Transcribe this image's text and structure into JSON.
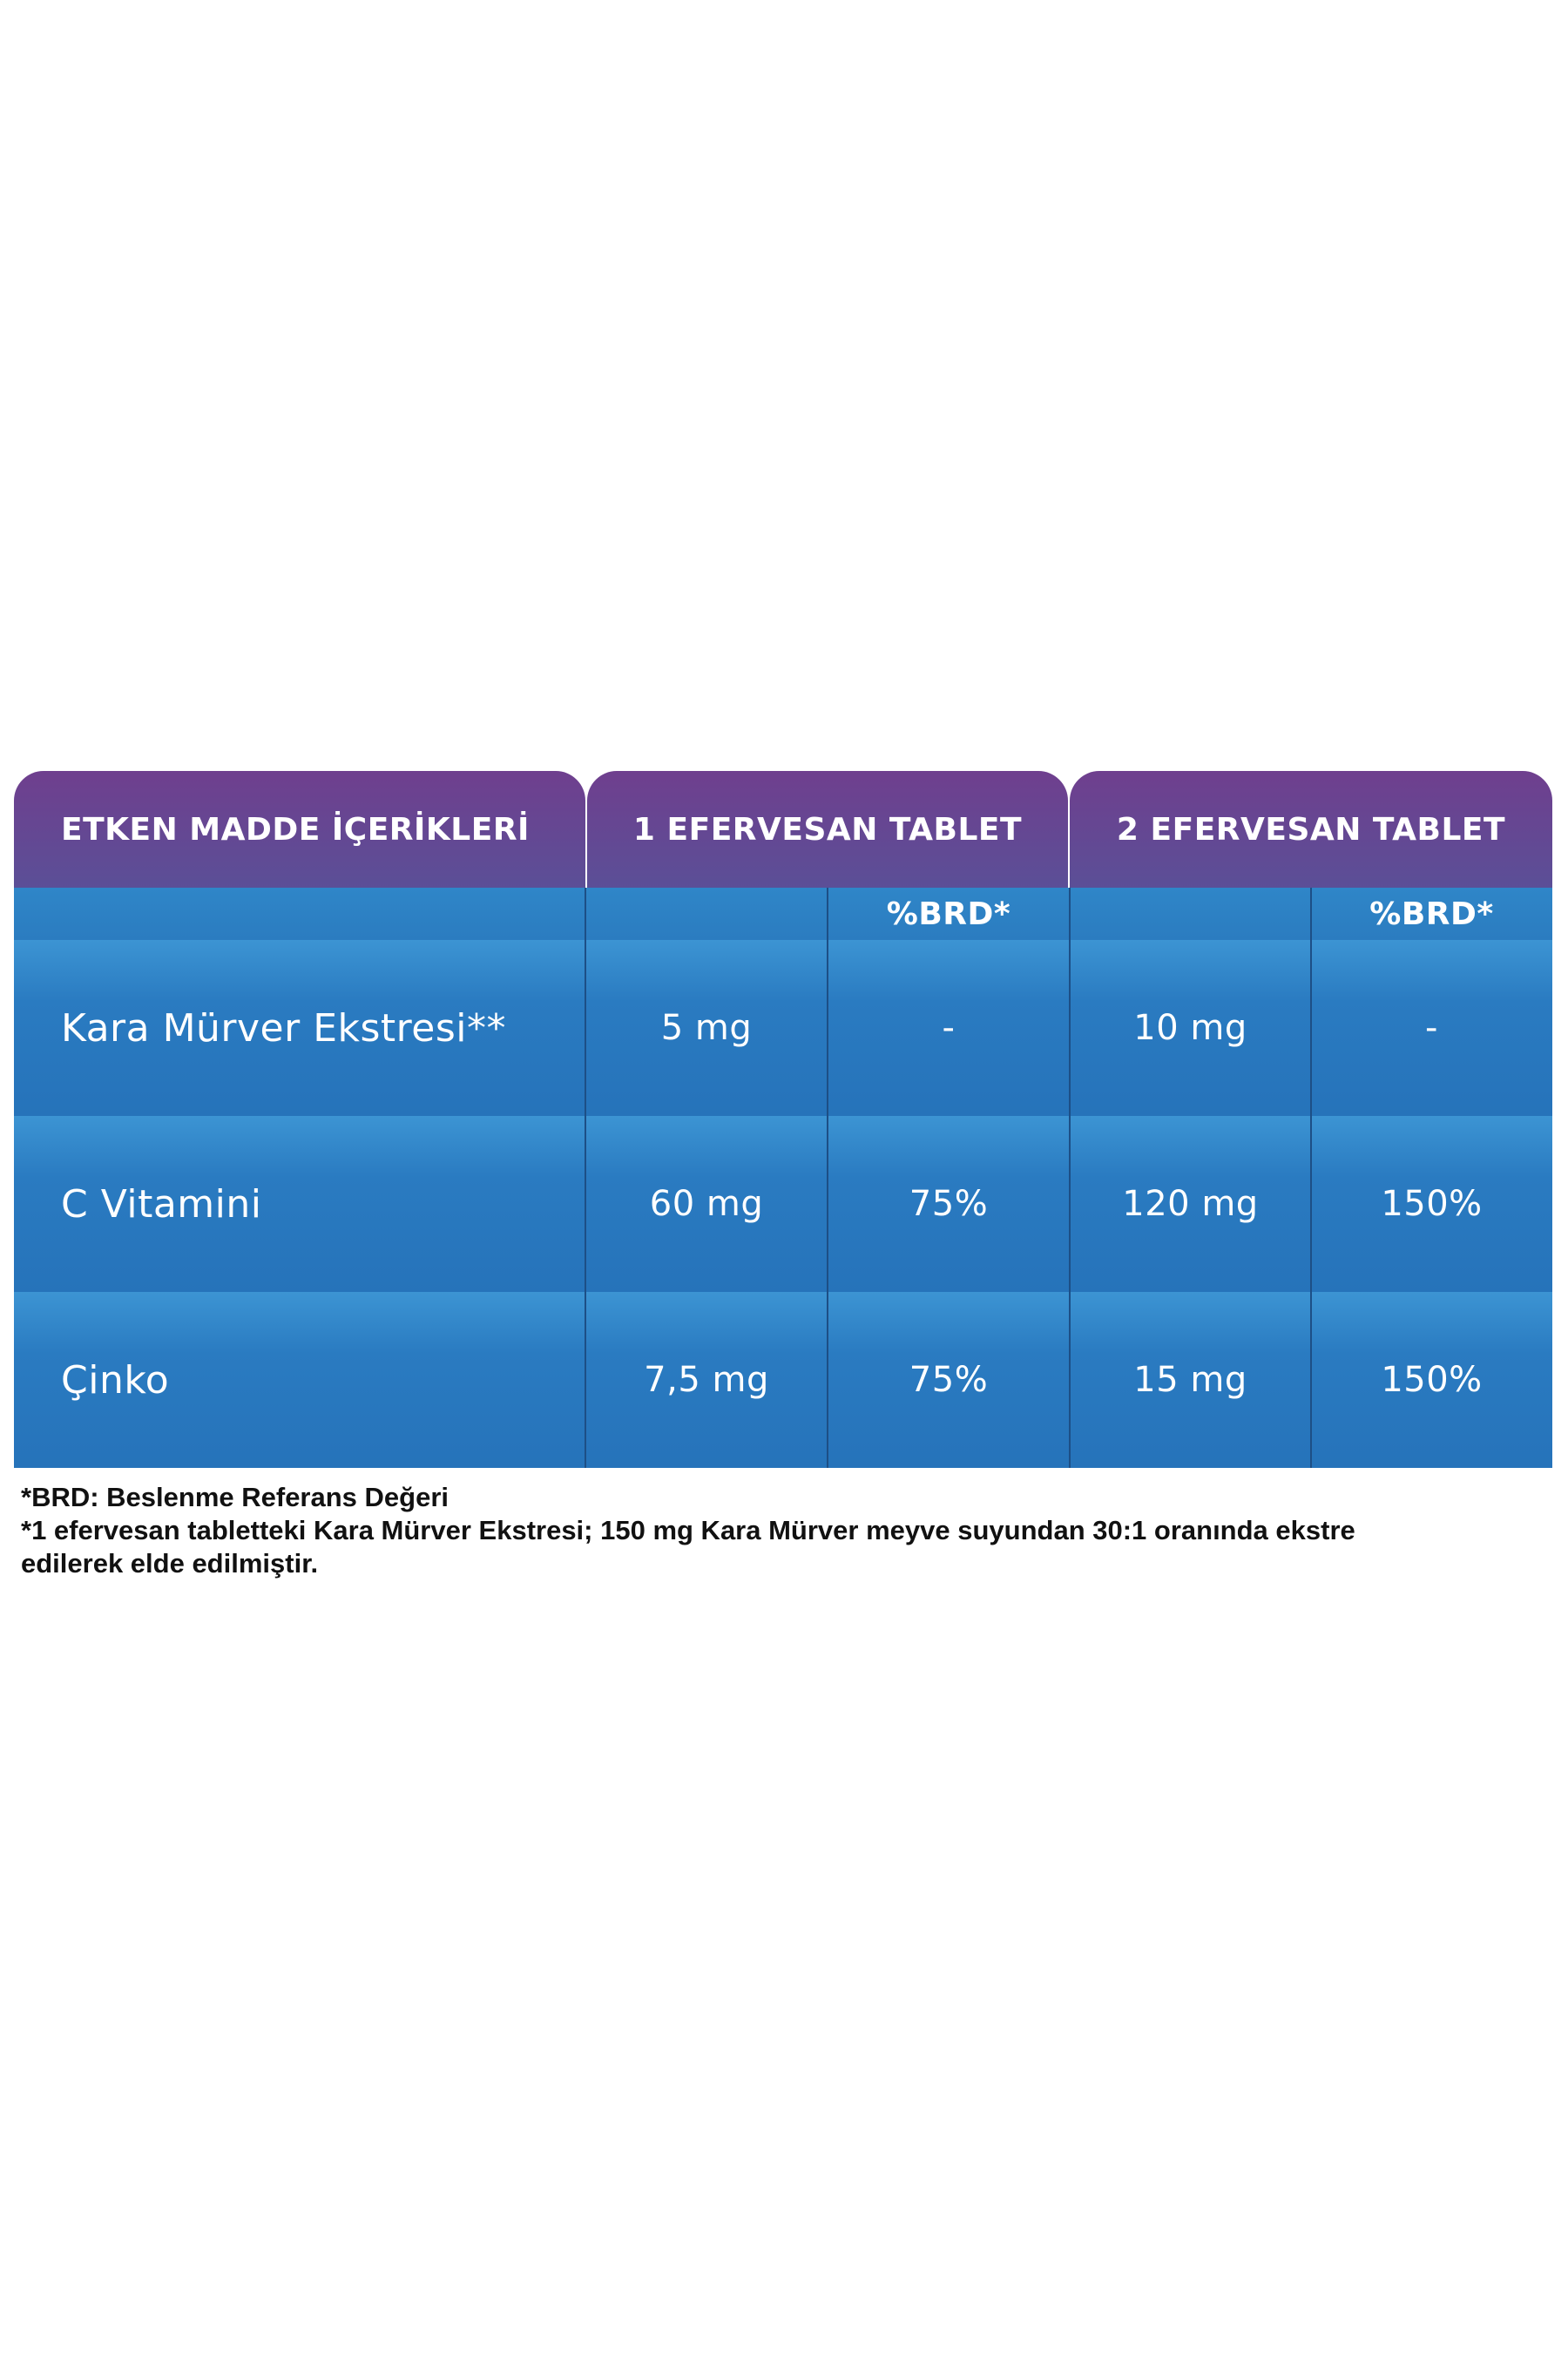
{
  "table": {
    "headers": {
      "ingredients": "ETKEN MADDE İÇERİKLERİ",
      "one_tablet": "1 EFERVESAN TABLET",
      "two_tablets": "2 EFERVESAN TABLET"
    },
    "subheaders": {
      "one_tablet_brd": "%BRD*",
      "two_tablets_brd": "%BRD*"
    },
    "rows": [
      {
        "name": "Kara Mürver Ekstresi**",
        "one_amount": "5 mg",
        "one_brd": "-",
        "two_amount": "10 mg",
        "two_brd": "-"
      },
      {
        "name": "C Vitamini",
        "one_amount": "60 mg",
        "one_brd": "75%",
        "two_amount": "120 mg",
        "two_brd": "150%"
      },
      {
        "name": "Çinko",
        "one_amount": "7,5 mg",
        "one_brd": "75%",
        "two_amount": "15 mg",
        "two_brd": "150%"
      }
    ]
  },
  "footnotes": {
    "brd": "*BRD: Beslenme Referans Değeri",
    "extract_line1": "*1 efervesan tabletteki Kara Mürver Ekstresi; 150 mg Kara Mürver meyve suyundan 30:1 oranında ekstre",
    "extract_line2": "edilerek elde edilmiştir."
  },
  "colors": {
    "header_purple": "#6f3f8e",
    "row_blue": "#2a7bc1",
    "divider": "#1d4f86",
    "text": "#ffffff"
  }
}
